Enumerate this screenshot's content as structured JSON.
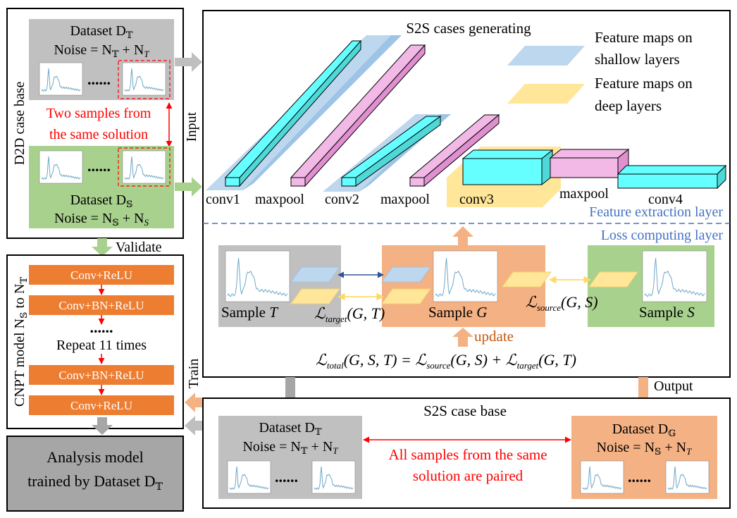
{
  "d2d": {
    "side_label": "D2D case base",
    "top_dataset_title": "Dataset D",
    "top_dataset_sub": "𝕋",
    "top_noise": "Noise = N",
    "top_noise_sub1": "𝕋",
    "top_noise_plus": " + N",
    "top_noise_sub2": "T",
    "dots": "......",
    "pair_note_line1": "Two samples from",
    "pair_note_line2": "the same solution",
    "bottom_dataset_title": "Dataset D",
    "bottom_dataset_sub": "𝕊",
    "bottom_noise": "Noise = N",
    "bottom_noise_sub1": "𝕊",
    "bottom_noise_plus": " + N",
    "bottom_noise_sub2": "S"
  },
  "labels": {
    "input": "Input",
    "validate": "Validate",
    "train": "Train",
    "output": "Output",
    "update": "update"
  },
  "cnpt": {
    "side_label": "CNPT model N",
    "side_sub1": "𝕊",
    "side_mid": " to N",
    "side_sub2": "𝕋",
    "layers": [
      "Conv+ReLU",
      "Conv+BN+ReLU",
      "Conv+BN+ReLU",
      "Conv+ReLU"
    ],
    "dots": "......",
    "repeat": "Repeat 11 times"
  },
  "analysis": {
    "line1": "Analysis model",
    "line2": "trained by Dataset D",
    "sub": "𝕋"
  },
  "s2s_gen": {
    "title": "S2S cases generating",
    "legend_shallow_line1": "Feature maps on",
    "legend_shallow_line2": "shallow layers",
    "legend_deep_line1": "Feature maps on",
    "legend_deep_line2": "deep layers",
    "layers": [
      "conv1",
      "maxpool",
      "conv2",
      "maxpool",
      "conv3",
      "maxpool",
      "conv4"
    ],
    "feature_layer": "Feature extraction layer",
    "loss_layer": "Loss computing layer",
    "sample_t": "Sample ",
    "sample_t_var": "T",
    "sample_g": "Sample ",
    "sample_g_var": "G",
    "sample_s": "Sample ",
    "sample_s_var": "S",
    "loss_target": "ℒ",
    "loss_target_sub": "target",
    "loss_target_args": "(G, T)",
    "loss_source": "ℒ",
    "loss_source_sub": "source",
    "loss_source_args": "(G, S)",
    "total_lhs": "ℒ",
    "total_lhs_sub": "total",
    "total_lhs_args": "(G, S, T) = ",
    "total_r1": "ℒ",
    "total_r1_sub": "source",
    "total_r1_args": "(G, S) + ",
    "total_r2": "ℒ",
    "total_r2_sub": "target",
    "total_r2_args": "(G, T)"
  },
  "s2s_base": {
    "title": "S2S case base",
    "left_dataset_title": "Dataset D",
    "left_dataset_sub": "𝕋",
    "left_noise": "Noise = N",
    "left_noise_sub1": "𝕋",
    "left_noise_plus": " + N",
    "left_noise_sub2": "T",
    "right_dataset_title": "Dataset D",
    "right_dataset_sub": "𝔾",
    "right_noise": "Noise = N",
    "right_noise_sub1": "𝕊",
    "right_noise_plus": " + N",
    "right_noise_sub2": "T",
    "paired_line1": "All samples from the same",
    "paired_line2": "solution are paired",
    "dots": "......"
  },
  "colors": {
    "gray_box": "#c0c0c0",
    "green_box": "#a9d18e",
    "orange_box": "#f4b183",
    "orange_layer": "#ed7d31",
    "cyan_block": "#66ffff",
    "pink_block": "#f2b8e6",
    "shallow_map": "#bdd7ee",
    "deep_map": "#ffe699",
    "red_text": "#ff0000",
    "blue_text": "#4472c4",
    "update_text": "#c55a11",
    "spectrum_line": "#6fa8c8"
  }
}
